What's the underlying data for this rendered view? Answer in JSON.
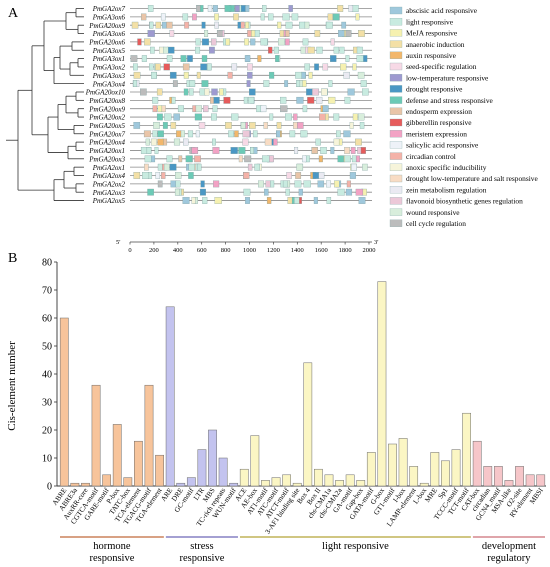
{
  "panel_a": {
    "label": "A",
    "genes": [
      "PmGA2ox7",
      "PmGA3ox6",
      "PmGA20ox9",
      "PmGA3ox6",
      "PmGA20ox6",
      "PmGA3ox5",
      "PmGA3ox1",
      "PmGA3ox2",
      "PmGA3ox3",
      "PmGA3ox4",
      "PmGA20ox10",
      "PmGA20ox8",
      "PmGA20ox9",
      "PmGA20ox2",
      "PmGA20ox5",
      "PmGA20ox7",
      "PmGA20ox4",
      "PmGA20ox1",
      "PmGA20ox3",
      "PmGA2ox1",
      "PmGA2ox4",
      "PmGA2ox2",
      "PmGA2ox3",
      "PmGA2ox5"
    ],
    "axis_ticks": [
      "0",
      "200",
      "400",
      "600",
      "800",
      "1000",
      "1200",
      "1400",
      "1600",
      "1800",
      "2000"
    ],
    "axis_start": "5'",
    "axis_end": "3'",
    "axis_max": 2000,
    "legend": [
      {
        "label": "abscisic acid responsive",
        "color": "#9fc8dc"
      },
      {
        "label": "light responsive",
        "color": "#c8ebe0"
      },
      {
        "label": "MeJA responsive",
        "color": "#f6f1b0"
      },
      {
        "label": "anaerobic induction",
        "color": "#f3e0a6"
      },
      {
        "label": "auxin responsive",
        "color": "#f2b76b"
      },
      {
        "label": "seed-specific regulation",
        "color": "#f7d9e6"
      },
      {
        "label": "low-temperature responsive",
        "color": "#9e9ad0"
      },
      {
        "label": "drought responsive",
        "color": "#4a97c4"
      },
      {
        "label": "defense and stress responsive",
        "color": "#6ccab6"
      },
      {
        "label": "endosperm expression",
        "color": "#e9c5a8"
      },
      {
        "label": "gibberellin responsive",
        "color": "#e65b5b"
      },
      {
        "label": "meristem expression",
        "color": "#f2a2c4"
      },
      {
        "label": "salicylic acid responsive",
        "color": "#eef2f8"
      },
      {
        "label": "circadian control",
        "color": "#f4b2a8"
      },
      {
        "label": "anoxic specific inducibility",
        "color": "#f6f4da"
      },
      {
        "label": "drought low-temperature and salt responsive",
        "color": "#f8dcc4"
      },
      {
        "label": "zein metabolism regulation",
        "color": "#eaeaf2"
      },
      {
        "label": "flavonoid biosynthetic genes regulation",
        "color": "#ecc8d8"
      },
      {
        "label": "wound responsive",
        "color": "#d8eedc"
      },
      {
        "label": "cell cycle regulation",
        "color": "#bcbcbc"
      }
    ]
  },
  "panel_b": {
    "label": "B"
  },
  "chart_data": {
    "type": "bar",
    "ylabel": "Cis-element number",
    "ylim": [
      0,
      80
    ],
    "yticks": [
      "0",
      "10",
      "20",
      "30",
      "40",
      "50",
      "60",
      "70",
      "80"
    ],
    "categories": [
      "ABRE",
      "ABRE3a",
      "AuxRR-core",
      "CGTCA-motif",
      "GARE-motif",
      "P-box",
      "TATC-box",
      "TCA-element",
      "TGACG-motif",
      "TGA-element",
      "ARE",
      "DRE",
      "GC-motif",
      "LTR",
      "MBS",
      "TC-rich repeats",
      "WUN-motif",
      "ACE",
      "AE-box",
      "AT1-motif",
      "ATC-motif",
      "ATCT-motif",
      "3-AF1 binding site",
      "Box 4",
      "Box II",
      "chs-CMA1a",
      "chs-CMA2a",
      "GA-motif",
      "Gap-box",
      "GATA-motif",
      "G-box",
      "GT1-motif",
      "I-box",
      "LAMP-element",
      "L-box",
      "MRE",
      "Sp1",
      "TCCC-motif",
      "TCT-motif",
      "CAT-box",
      "circadian",
      "GCN4_motif",
      "MSA-like",
      "O2-site",
      "RY-element",
      "MBSI"
    ],
    "values": [
      60,
      1,
      1,
      36,
      4,
      22,
      3,
      16,
      36,
      11,
      64,
      1,
      3,
      13,
      20,
      10,
      1,
      6,
      18,
      2,
      3,
      4,
      1,
      44,
      6,
      4,
      2,
      4,
      2,
      12,
      73,
      15,
      17,
      7,
      1,
      12,
      9,
      13,
      26,
      16,
      7,
      7,
      2,
      7,
      4,
      4
    ],
    "colors": [
      "#f7c49b",
      "#f7c49b",
      "#f7c49b",
      "#f7c49b",
      "#f7c49b",
      "#f7c49b",
      "#f7c49b",
      "#f7c49b",
      "#f7c49b",
      "#f7c49b",
      "#c3c3ef",
      "#c3c3ef",
      "#c3c3ef",
      "#c3c3ef",
      "#c3c3ef",
      "#c3c3ef",
      "#c3c3ef",
      "#fbf6c4",
      "#fbf6c4",
      "#fbf6c4",
      "#fbf6c4",
      "#fbf6c4",
      "#fbf6c4",
      "#fbf6c4",
      "#fbf6c4",
      "#fbf6c4",
      "#fbf6c4",
      "#fbf6c4",
      "#fbf6c4",
      "#fbf6c4",
      "#fbf6c4",
      "#fbf6c4",
      "#fbf6c4",
      "#fbf6c4",
      "#fbf6c4",
      "#fbf6c4",
      "#fbf6c4",
      "#fbf6c4",
      "#fbf6c4",
      "#f6c6c9",
      "#f6c6c9",
      "#f6c6c9",
      "#f6c6c9",
      "#f6c6c9",
      "#f6c6c9",
      "#f6c6c9"
    ],
    "groups": [
      {
        "label_lines": [
          "hormone",
          "responsive"
        ],
        "start": 0,
        "end": 9,
        "color": "#c0693a"
      },
      {
        "label_lines": [
          "stress",
          "responsive"
        ],
        "start": 10,
        "end": 16,
        "color": "#6e68b8"
      },
      {
        "label_lines": [
          "light responsive"
        ],
        "start": 17,
        "end": 38,
        "color": "#b3a338"
      },
      {
        "label_lines": [
          "development",
          "regulatory"
        ],
        "start": 39,
        "end": 45,
        "color": "#cc6f77"
      }
    ]
  }
}
